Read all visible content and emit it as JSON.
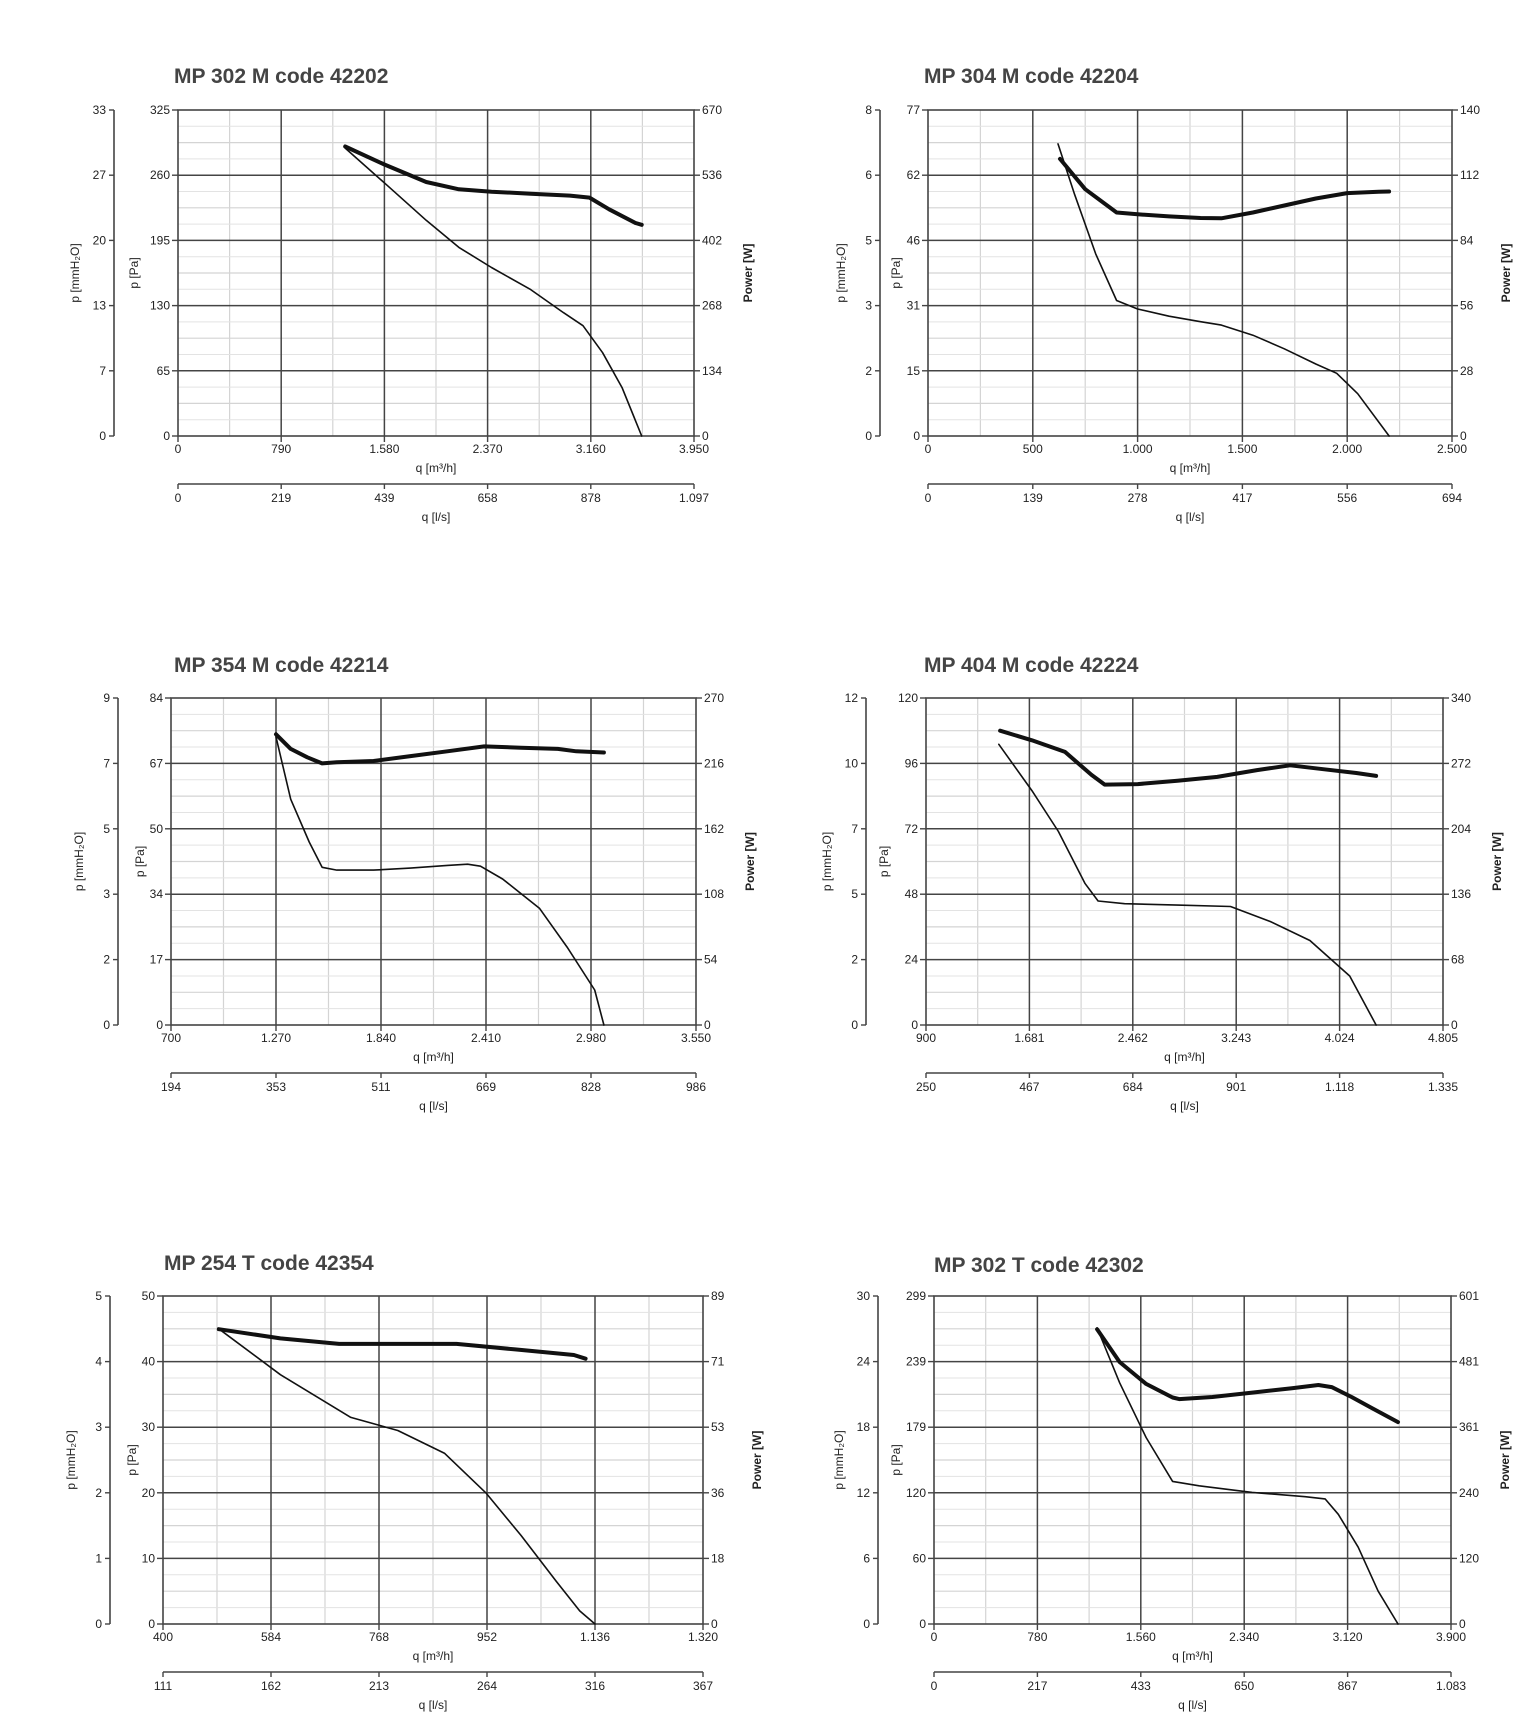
{
  "chart_data": [
    {
      "type": "line",
      "title": "MP 302 M code 42202",
      "xlabel": "q [m³/h]",
      "xlabel2": "q [l/s]",
      "ylabel_mmh2o": "p [mmH₂O]",
      "ylabel_pa": "p [Pa]",
      "ylabel_power": "Power [W]",
      "xlim": [
        0,
        3950
      ],
      "x_ticks": [
        "0",
        "790",
        "1.580",
        "2.370",
        "3.160",
        "3.950"
      ],
      "x2_ticks": [
        "0",
        "219",
        "439",
        "658",
        "878",
        "1.097"
      ],
      "ylim_pa": [
        0,
        325
      ],
      "pa_ticks": [
        "0",
        "65",
        "130",
        "195",
        "260",
        "325"
      ],
      "mmh2o_ticks": [
        "0",
        "7",
        "13",
        "20",
        "27",
        "33"
      ],
      "ylim_power": [
        0,
        670
      ],
      "power_ticks": [
        "0",
        "134",
        "268",
        "402",
        "536",
        "670"
      ],
      "series": [
        {
          "name": "Pressure [Pa]",
          "axis": "pa",
          "x": [
            1280,
            1600,
            1900,
            2150,
            2400,
            2700,
            2950,
            3100,
            3250,
            3400,
            3550
          ],
          "y": [
            287,
            250,
            215,
            188,
            168,
            146,
            123,
            110,
            83,
            48,
            0
          ]
        },
        {
          "name": "Power [W]",
          "axis": "power",
          "x": [
            1280,
            1580,
            1900,
            2150,
            2400,
            2700,
            3000,
            3150,
            3300,
            3500,
            3550
          ],
          "y": [
            595,
            558,
            522,
            507,
            502,
            498,
            494,
            490,
            466,
            438,
            434
          ]
        }
      ]
    },
    {
      "type": "line",
      "title": "MP 304 M code 42204",
      "xlabel": "q [m³/h]",
      "xlabel2": "q [l/s]",
      "ylabel_mmh2o": "p [mmH₂O]",
      "ylabel_pa": "p [Pa]",
      "ylabel_power": "Power [W]",
      "xlim": [
        0,
        2500
      ],
      "x_ticks": [
        "0",
        "500",
        "1.000",
        "1.500",
        "2.000",
        "2.500"
      ],
      "x2_ticks": [
        "0",
        "139",
        "278",
        "417",
        "556",
        "694"
      ],
      "ylim_pa": [
        0,
        77
      ],
      "pa_ticks": [
        "0",
        "15",
        "31",
        "46",
        "62",
        "77"
      ],
      "mmh2o_ticks": [
        "0",
        "2",
        "3",
        "5",
        "6",
        "8"
      ],
      "ylim_power": [
        0,
        140
      ],
      "power_ticks": [
        "0",
        "28",
        "56",
        "84",
        "112",
        "140"
      ],
      "series": [
        {
          "name": "Pressure [Pa]",
          "axis": "pa",
          "x": [
            620,
            700,
            800,
            900,
            1000,
            1150,
            1300,
            1400,
            1550,
            1700,
            1850,
            1950,
            2050,
            2200
          ],
          "y": [
            69,
            57,
            43,
            32,
            30,
            28.3,
            27,
            26.2,
            23.8,
            20.6,
            17,
            14.8,
            10,
            0
          ]
        },
        {
          "name": "Power [W]",
          "axis": "power",
          "x": [
            630,
            750,
            900,
            1000,
            1150,
            1300,
            1400,
            1550,
            1700,
            1850,
            2000,
            2150,
            2200
          ],
          "y": [
            119,
            106,
            96,
            95.2,
            94.3,
            93.6,
            93.5,
            96,
            99,
            102,
            104.3,
            104.9,
            105
          ]
        }
      ]
    },
    {
      "type": "line",
      "title": "MP 354 M code 42214",
      "xlabel": "q [m³/h]",
      "xlabel2": "q [l/s]",
      "ylabel_mmh2o": "p [mmH₂O]",
      "ylabel_pa": "p [Pa]",
      "ylabel_power": "Power [W]",
      "xlim": [
        700,
        3550
      ],
      "x_ticks": [
        "700",
        "1.270",
        "1.840",
        "2.410",
        "2.980",
        "3.550"
      ],
      "x2_ticks": [
        "194",
        "353",
        "511",
        "669",
        "828",
        "986"
      ],
      "ylim_pa": [
        0,
        84
      ],
      "pa_ticks": [
        "0",
        "17",
        "34",
        "50",
        "67",
        "84"
      ],
      "mmh2o_ticks": [
        "0",
        "2",
        "3",
        "5",
        "7",
        "9"
      ],
      "ylim_power": [
        0,
        270
      ],
      "power_ticks": [
        "0",
        "54",
        "108",
        "162",
        "216",
        "270"
      ],
      "series": [
        {
          "name": "Pressure [Pa]",
          "axis": "pa",
          "x": [
            1270,
            1350,
            1450,
            1520,
            1600,
            1800,
            2000,
            2200,
            2310,
            2380,
            2500,
            2700,
            2850,
            3000,
            3050
          ],
          "y": [
            74,
            58,
            47,
            40.5,
            39.8,
            39.8,
            40.3,
            41,
            41.3,
            40.8,
            37.5,
            30,
            20,
            9,
            0
          ]
        },
        {
          "name": "Power [W]",
          "axis": "power",
          "x": [
            1270,
            1350,
            1440,
            1520,
            1600,
            1800,
            2000,
            2200,
            2400,
            2600,
            2800,
            2900,
            3050
          ],
          "y": [
            240,
            228,
            221,
            216,
            217,
            218,
            222,
            226,
            230,
            229,
            228,
            226,
            225
          ]
        }
      ]
    },
    {
      "type": "line",
      "title": "MP 404 M code 42224",
      "xlabel": "q [m³/h]",
      "xlabel2": "q [l/s]",
      "ylabel_mmh2o": "p [mmH₂O]",
      "ylabel_pa": "p [Pa]",
      "ylabel_power": "Power [W]",
      "xlim": [
        900,
        4805
      ],
      "x_ticks": [
        "900",
        "1.681",
        "2.462",
        "3.243",
        "4.024",
        "4.805"
      ],
      "x2_ticks": [
        "250",
        "467",
        "684",
        "901",
        "1.118",
        "1.335"
      ],
      "ylim_pa": [
        0,
        120
      ],
      "pa_ticks": [
        "0",
        "24",
        "48",
        "72",
        "96",
        "120"
      ],
      "mmh2o_ticks": [
        "0",
        "2",
        "5",
        "7",
        "10",
        "12"
      ],
      "ylim_power": [
        0,
        340
      ],
      "power_ticks": [
        "0",
        "68",
        "136",
        "204",
        "272",
        "340"
      ],
      "series": [
        {
          "name": "Pressure [Pa]",
          "axis": "pa",
          "x": [
            1450,
            1700,
            1900,
            2100,
            2200,
            2400,
            2800,
            3200,
            3500,
            3800,
            4100,
            4300
          ],
          "y": [
            103,
            86,
            71,
            52,
            45.5,
            44.5,
            44,
            43.5,
            38,
            31,
            18,
            0
          ]
        },
        {
          "name": "Power [W]",
          "axis": "power",
          "x": [
            1460,
            1700,
            1950,
            2150,
            2250,
            2500,
            2800,
            3100,
            3400,
            3650,
            3900,
            4150,
            4300
          ],
          "y": [
            306,
            296,
            284,
            260,
            250,
            250.5,
            254,
            258,
            265,
            270,
            266,
            262,
            259
          ]
        }
      ]
    },
    {
      "type": "line",
      "title": "MP 254 T code 42354",
      "xlabel": "q [m³/h]",
      "xlabel2": "q [l/s]",
      "ylabel_mmh2o": "p [mmH₂O]",
      "ylabel_pa": "p [Pa]",
      "ylabel_power": "Power [W]",
      "xlim": [
        400,
        1320
      ],
      "x_ticks": [
        "400",
        "584",
        "768",
        "952",
        "1.136",
        "1.320"
      ],
      "x2_ticks": [
        "111",
        "162",
        "213",
        "264",
        "316",
        "367"
      ],
      "ylim_pa": [
        0,
        50
      ],
      "pa_ticks": [
        "0",
        "10",
        "20",
        "30",
        "40",
        "50"
      ],
      "mmh2o_ticks": [
        "0",
        "1",
        "2",
        "3",
        "4",
        "5"
      ],
      "ylim_power": [
        0,
        89
      ],
      "power_ticks": [
        "0",
        "18",
        "36",
        "53",
        "71",
        "89"
      ],
      "series": [
        {
          "name": "Pressure [Pa]",
          "axis": "pa",
          "x": [
            495,
            600,
            720,
            800,
            880,
            950,
            1010,
            1070,
            1110,
            1136
          ],
          "y": [
            45,
            38,
            31.5,
            29.5,
            26,
            20,
            13.5,
            6.5,
            2,
            0
          ]
        },
        {
          "name": "Power [W]",
          "axis": "power",
          "x": [
            495,
            600,
            700,
            800,
            900,
            1000,
            1100,
            1120
          ],
          "y": [
            80,
            77.5,
            76,
            76,
            76,
            74.5,
            73,
            72
          ]
        }
      ]
    },
    {
      "type": "line",
      "title": "MP 302 T code 42302",
      "xlabel": "q [m³/h]",
      "xlabel2": "q [l/s]",
      "ylabel_mmh2o": "p [mmH₂O]",
      "ylabel_pa": "p [Pa]",
      "ylabel_power": "Power [W]",
      "xlim": [
        0,
        3900
      ],
      "x_ticks": [
        "0",
        "780",
        "1.560",
        "2.340",
        "3.120",
        "3.900"
      ],
      "x2_ticks": [
        "0",
        "217",
        "433",
        "650",
        "867",
        "1.083"
      ],
      "ylim_pa": [
        0,
        299
      ],
      "pa_ticks": [
        "0",
        "60",
        "120",
        "179",
        "239",
        "299"
      ],
      "mmh2o_ticks": [
        "0",
        "6",
        "12",
        "18",
        "24",
        "30"
      ],
      "ylim_power": [
        0,
        601
      ],
      "power_ticks": [
        "0",
        "120",
        "240",
        "361",
        "481",
        "601"
      ],
      "series": [
        {
          "name": "Pressure [Pa]",
          "axis": "pa",
          "x": [
            1230,
            1400,
            1600,
            1800,
            2000,
            2400,
            2800,
            2950,
            3050,
            3200,
            3350,
            3500
          ],
          "y": [
            270,
            220,
            170,
            130,
            126,
            120,
            116,
            114,
            100,
            70,
            30,
            0
          ]
        },
        {
          "name": "Power [W]",
          "axis": "power",
          "x": [
            1230,
            1400,
            1600,
            1800,
            1850,
            2100,
            2400,
            2700,
            2900,
            3000,
            3150,
            3300,
            3500
          ],
          "y": [
            540,
            480,
            440,
            415,
            412,
            416,
            424,
            432,
            438,
            434,
            416,
            396,
            370
          ]
        }
      ]
    }
  ]
}
